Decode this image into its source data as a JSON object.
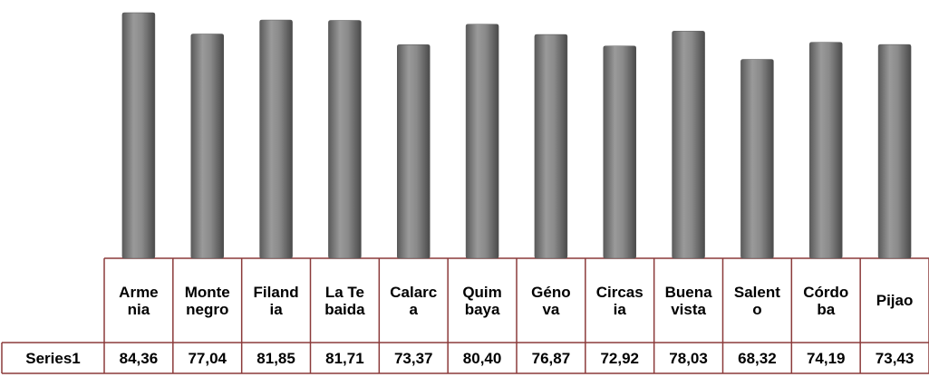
{
  "chart_data": {
    "type": "bar",
    "categories": [
      "Armenia",
      "Montenegro",
      "Filandia",
      "La Tebaida",
      "Calarca",
      "Quimbaya",
      "Génova",
      "Circasia",
      "Buenavista",
      "Salento",
      "Córdoba",
      "Pijao"
    ],
    "series": [
      {
        "name": "Series1",
        "color": "#7f7f7f",
        "values": [
          84.36,
          77.04,
          81.85,
          81.71,
          73.37,
          80.4,
          76.87,
          72.92,
          78.03,
          68.32,
          74.19,
          73.43
        ],
        "value_labels": [
          "84,36",
          "77,04",
          "81,85",
          "81,71",
          "73,37",
          "80,40",
          "76,87",
          "72,92",
          "78,03",
          "68,32",
          "74,19",
          "73,43"
        ]
      }
    ]
  }
}
